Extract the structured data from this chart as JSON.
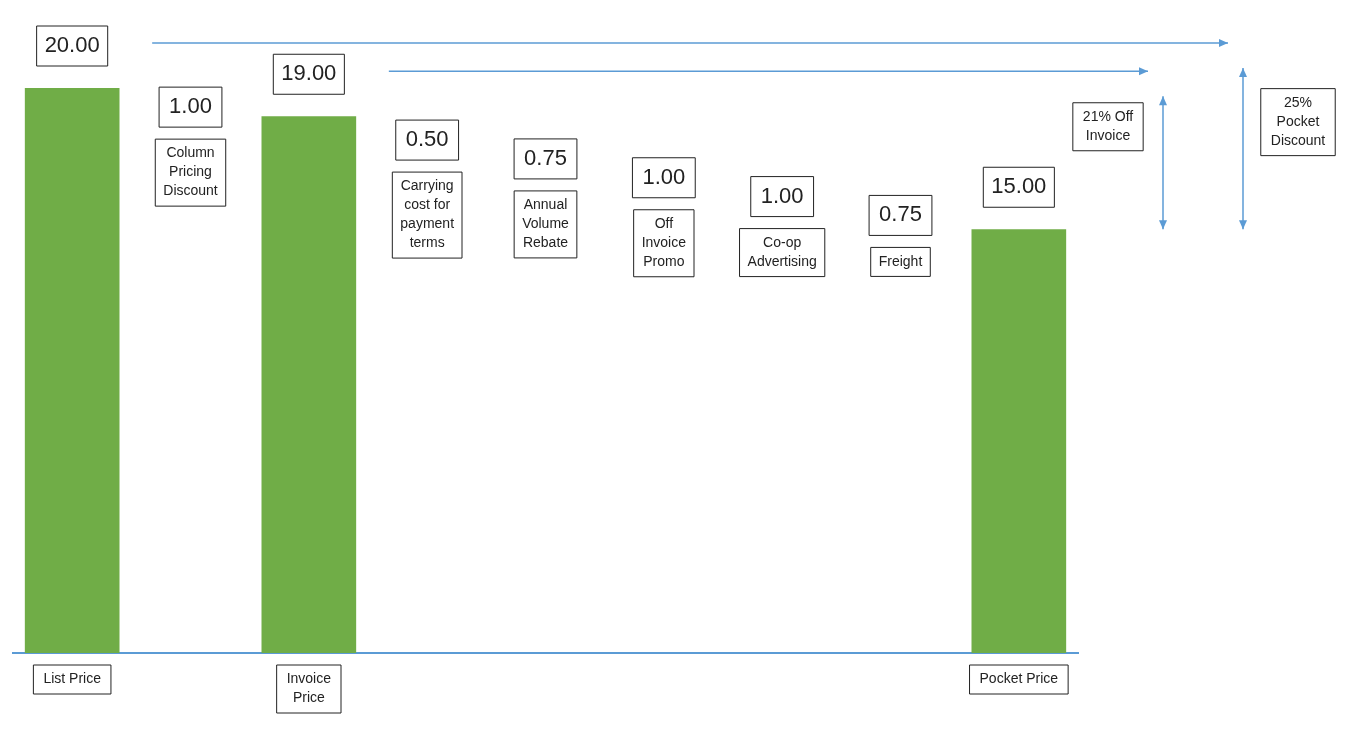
{
  "chart_data": {
    "type": "bar",
    "categories": [
      "List Price",
      "Column Pricing Discount",
      "Invoice Price",
      "Carrying cost for payment terms",
      "Annual Volume Rebate",
      "Off Invoice Promo",
      "Co-op Advertising",
      "Freight",
      "Pocket Price"
    ],
    "values": [
      20,
      null,
      19,
      null,
      null,
      null,
      null,
      null,
      15
    ],
    "value_labels": [
      "20.00",
      null,
      "19.00",
      null,
      null,
      null,
      null,
      null,
      "15.00"
    ],
    "color": "#70ad47",
    "annotations": [
      "1.00",
      "0.50",
      "0.75",
      "1.00",
      "1.00",
      "0.75",
      "21% Off Invoice",
      "25% Pocket Discount"
    ],
    "grid": false,
    "legend": false
  }
}
